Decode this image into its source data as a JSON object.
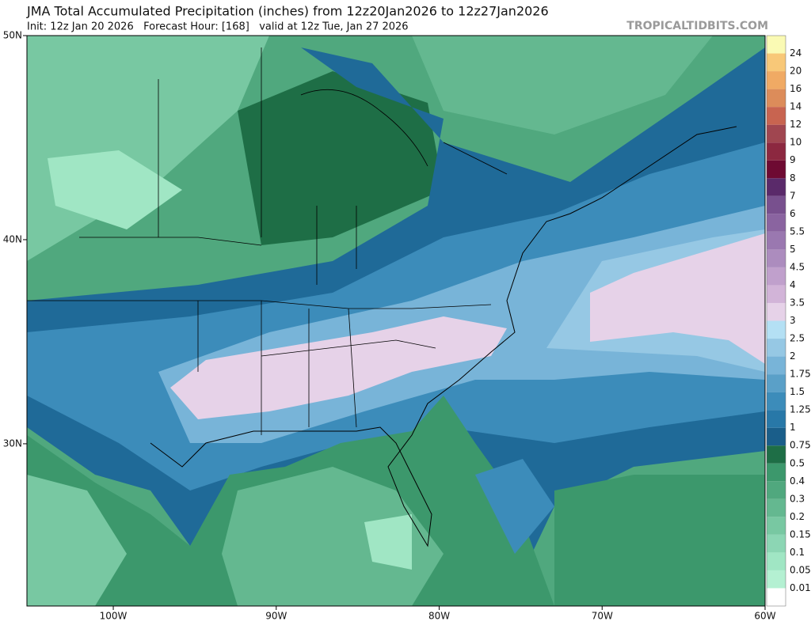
{
  "map": {
    "title": "JMA Total Accumulated Precipitation (inches) from 12z20Jan2026 to 12z27Jan2026",
    "subtitle": "Init: 12z Jan 20 2026   Forecast Hour: [168]   valid at 12z Tue, Jan 27 2026",
    "watermark": "TROPICALTIDBITS.COM",
    "xlim": [
      -105.3,
      -60
    ],
    "ylim": [
      22.05,
      50
    ],
    "xticks": [
      {
        "value": -100,
        "label": "100W"
      },
      {
        "value": -90,
        "label": "90W"
      },
      {
        "value": -80,
        "label": "80W"
      },
      {
        "value": -70,
        "label": "70W"
      },
      {
        "value": -60,
        "label": "60W"
      }
    ],
    "yticks": [
      {
        "value": 50,
        "label": "50N"
      },
      {
        "value": 40,
        "label": "40N"
      },
      {
        "value": 30,
        "label": "30N"
      }
    ],
    "colorbar": {
      "levels": [
        {
          "value": 0.01,
          "label": "0.01"
        },
        {
          "value": 0.05,
          "label": "0.05"
        },
        {
          "value": 0.1,
          "label": "0.1"
        },
        {
          "value": 0.15,
          "label": "0.15"
        },
        {
          "value": 0.2,
          "label": "0.2"
        },
        {
          "value": 0.3,
          "label": "0.3"
        },
        {
          "value": 0.4,
          "label": "0.4"
        },
        {
          "value": 0.5,
          "label": "0.5"
        },
        {
          "value": 0.75,
          "label": "0.75"
        },
        1,
        {
          "value": 1.25,
          "label": "1.25"
        },
        {
          "value": 1.5,
          "label": "1.5"
        },
        {
          "value": 1.75,
          "label": "1.75"
        },
        2,
        {
          "value": 2.5,
          "label": "2.5"
        },
        3,
        {
          "value": 3.5,
          "label": "3.5"
        },
        4,
        {
          "value": 4.5,
          "label": "4.5"
        },
        5,
        {
          "value": 5.5,
          "label": "5.5"
        },
        6,
        7,
        8,
        9,
        10,
        12,
        14,
        16,
        20,
        24
      ],
      "colors": [
        "#ffffff",
        "#b4f0d2",
        "#a0e6c4",
        "#8cd6b4",
        "#78c8a2",
        "#64b890",
        "#50a87e",
        "#3c986c",
        "#1e6e46",
        "#1a5e8a",
        "#2878a8",
        "#3c8cba",
        "#5aa0c8",
        "#78b4d8",
        "#96c8e4",
        "#b4e0f4",
        "#e6d2e8",
        "#d2b4d8",
        "#c0a0cc",
        "#ac8cbe",
        "#9a78b0",
        "#8a64a0",
        "#78508e",
        "#5a2a6a",
        "#6e0a32",
        "#8c2840",
        "#a04650",
        "#c86450",
        "#dc8c5a",
        "#f0aa64",
        "#f8c878",
        "#fafab4"
      ]
    }
  }
}
